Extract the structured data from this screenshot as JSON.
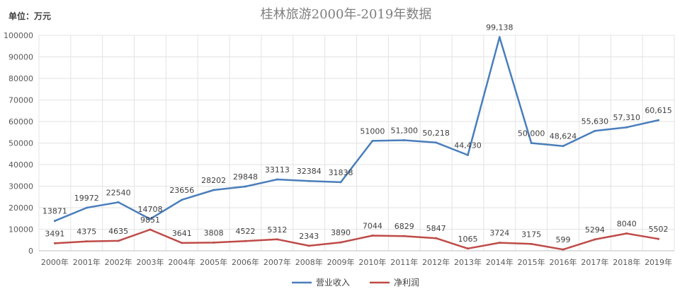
{
  "chart_data": {
    "type": "line",
    "title": "桂林旅游2000年-2019年数据",
    "unit_label": "单位：万元",
    "categories": [
      "2000年",
      "2001年",
      "2002年",
      "2003年",
      "2004年",
      "2005年",
      "2006年",
      "2007年",
      "2008年",
      "2009年",
      "2010年",
      "2011年",
      "2012年",
      "2013年",
      "2014年",
      "2015年",
      "2016年",
      "2017年",
      "2018年",
      "2019年"
    ],
    "ylim": [
      0,
      100000
    ],
    "yticks": [
      "0",
      "10000",
      "20000",
      "30000",
      "40000",
      "50000",
      "60000",
      "70000",
      "80000",
      "90000",
      "100000"
    ],
    "grid": true,
    "legend_position": "bottom",
    "series": [
      {
        "name": "营业收入",
        "color": "#4a7ebb",
        "values": [
          13871,
          19972,
          22540,
          14708,
          23656,
          28202,
          29848,
          33113,
          32384,
          31838,
          51000,
          51300,
          50218,
          44430,
          99138,
          50000,
          48624,
          55630,
          57310,
          60615
        ],
        "labels": [
          "13871",
          "19972",
          "22540",
          "14708",
          "23656",
          "28202",
          "29848",
          "33113",
          "32384",
          "31838",
          "51000",
          "51,300",
          "50,218",
          "44,430",
          "99,138",
          "50,000",
          "48,624",
          "55,630",
          "57,310",
          "60,615"
        ]
      },
      {
        "name": "净利润",
        "color": "#be4b48",
        "values": [
          3491,
          4375,
          4635,
          9851,
          3641,
          3808,
          4522,
          5312,
          2343,
          3890,
          7044,
          6829,
          5847,
          1065,
          3724,
          3175,
          599,
          5294,
          8040,
          5502
        ],
        "labels": [
          "3491",
          "4375",
          "4635",
          "9851",
          "3641",
          "3808",
          "4522",
          "5312",
          "2343",
          "3890",
          "7044",
          "6829",
          "5847",
          "1065",
          "3724",
          "3175",
          "599",
          "5294",
          "8040",
          "5502"
        ]
      }
    ]
  }
}
